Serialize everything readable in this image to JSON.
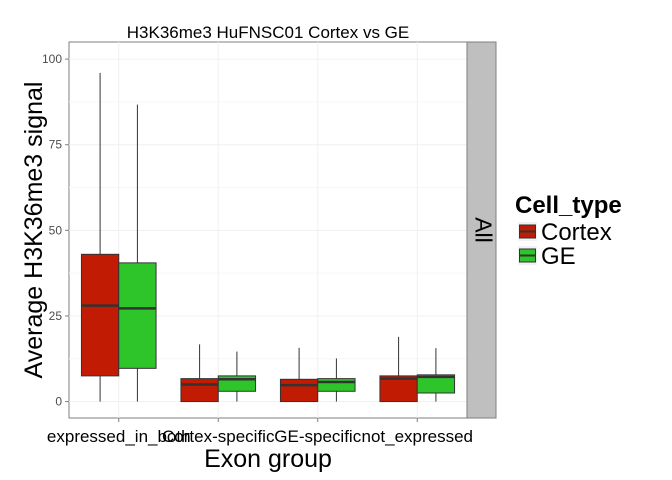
{
  "chart_data": {
    "type": "boxplot",
    "title": "H3K36me3 HuFNSC01 Cortex vs GE",
    "xlabel": "Exon group",
    "ylabel": "Average H3K36me3 signal",
    "categories": [
      "expressed_in_both",
      "Cortex-specific",
      "GE-specific",
      "not_expressed"
    ],
    "y_ticks": [
      0,
      25,
      50,
      75,
      100
    ],
    "ylim": [
      -4.8,
      105
    ],
    "facet_label": "All",
    "legend": {
      "title": "Cell_type",
      "position": "right",
      "entries": [
        "Cortex",
        "GE"
      ]
    },
    "grid": true,
    "colors": {
      "Cortex": "#c11b03",
      "GE": "#2ec52b"
    },
    "series": [
      {
        "name": "Cortex",
        "boxes": [
          {
            "min": 0,
            "q1": 7.5,
            "median": 28,
            "q3": 43,
            "max": 96
          },
          {
            "min": 0,
            "q1": 0,
            "median": 5,
            "q3": 6.7,
            "max": 16.7
          },
          {
            "min": 0,
            "q1": 0,
            "median": 4.8,
            "q3": 6.5,
            "max": 15.7
          },
          {
            "min": 0,
            "q1": 0,
            "median": 6.7,
            "q3": 7.5,
            "max": 18.9
          }
        ]
      },
      {
        "name": "GE",
        "boxes": [
          {
            "min": 0,
            "q1": 9.7,
            "median": 27.2,
            "q3": 40.5,
            "max": 86.7
          },
          {
            "min": 0,
            "q1": 3,
            "median": 6.5,
            "q3": 7.5,
            "max": 14.6
          },
          {
            "min": 0,
            "q1": 3,
            "median": 5.7,
            "q3": 6.7,
            "max": 12.6
          },
          {
            "min": 0,
            "q1": 2.5,
            "median": 7.2,
            "q3": 7.8,
            "max": 15.6
          }
        ]
      }
    ]
  }
}
